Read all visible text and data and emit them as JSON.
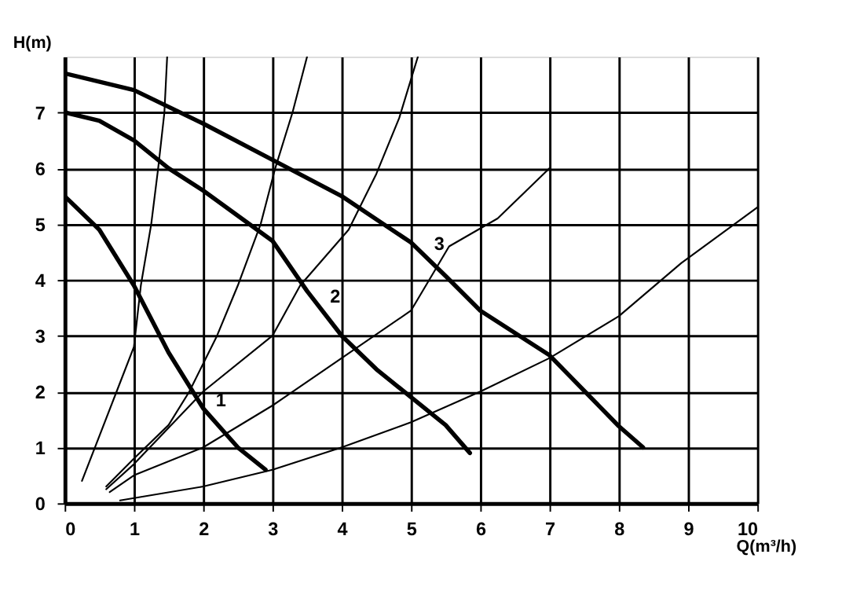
{
  "chart_data": {
    "type": "line",
    "xlabel": "Q(m³/h)",
    "ylabel": "H(m)",
    "xlim": [
      0,
      10
    ],
    "ylim": [
      0,
      8
    ],
    "xticks": [
      0,
      1,
      2,
      3,
      4,
      5,
      6,
      7,
      8,
      9,
      10
    ],
    "yticks": [
      0,
      1,
      2,
      3,
      4,
      5,
      6,
      7
    ],
    "grid": true,
    "line_style": "solid",
    "marker": "none",
    "series": [
      {
        "color": "#000000",
        "x": [
          0,
          0.5,
          1,
          1.5,
          2,
          2.5,
          2.9
        ],
        "values": [
          5.5,
          4.9,
          3.9,
          2.7,
          1.7,
          1.0,
          0.6
        ]
      },
      {
        "color": "#000000",
        "x": [
          0,
          0.5,
          1,
          1.5,
          2,
          2.5,
          3,
          3.5,
          4,
          4.5,
          5,
          5.5,
          5.85
        ],
        "values": [
          7.0,
          6.85,
          6.5,
          6.0,
          5.6,
          5.15,
          4.7,
          3.8,
          3.0,
          2.4,
          1.9,
          1.4,
          0.9
        ]
      },
      {
        "color": "#000000",
        "x": [
          0,
          1,
          2,
          3,
          4,
          5,
          5.5,
          6,
          7,
          8,
          8.35
        ],
        "values": [
          7.7,
          7.4,
          6.8,
          6.15,
          5.5,
          4.67,
          4.07,
          3.45,
          2.65,
          1.38,
          1.0
        ]
      },
      {
        "color": "#000000",
        "x": [
          0.25,
          0.5,
          0.75,
          1,
          1.1,
          1.25,
          1.35,
          1.44,
          1.48
        ],
        "values": [
          0.4,
          1.2,
          2.0,
          2.8,
          3.9,
          5.0,
          6.0,
          7.0,
          8.0
        ]
      },
      {
        "color": "#000000",
        "x": [
          0.6,
          1,
          1.5,
          1.8,
          2.2,
          2.5,
          2.83,
          3.04,
          3.29,
          3.5
        ],
        "values": [
          0.3,
          0.8,
          1.4,
          2.0,
          3.0,
          3.9,
          5.0,
          6.0,
          7.0,
          8.0
        ]
      },
      {
        "color": "#000000",
        "x": [
          0.6,
          1,
          2,
          3,
          3.4,
          4.1,
          4.5,
          4.83,
          5.1
        ],
        "values": [
          0.25,
          0.7,
          2.0,
          3.0,
          3.9,
          4.9,
          5.9,
          6.9,
          8.0
        ]
      },
      {
        "color": "#000000",
        "x": [
          0.65,
          1,
          2,
          3,
          4,
          5,
          5.55,
          6.25,
          7.0
        ],
        "values": [
          0.2,
          0.5,
          1.0,
          1.75,
          2.6,
          3.45,
          4.6,
          5.1,
          6.0
        ]
      },
      {
        "color": "#000000",
        "x": [
          0.8,
          2,
          3,
          4,
          5,
          6,
          7,
          8,
          8.9,
          10
        ],
        "values": [
          0.05,
          0.3,
          0.6,
          1.0,
          1.45,
          2.0,
          2.6,
          3.35,
          4.3,
          5.3
        ]
      }
    ],
    "annotations": [
      {
        "text": "1",
        "x": 2.05,
        "y": 1.63
      },
      {
        "text": "2",
        "x": 3.7,
        "y": 3.48
      },
      {
        "text": "3",
        "x": 5.2,
        "y": 4.43
      }
    ]
  }
}
